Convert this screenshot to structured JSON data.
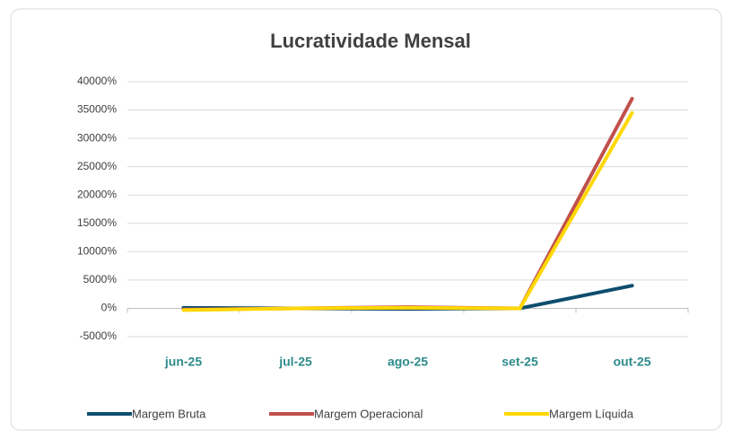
{
  "chart_data": {
    "type": "line",
    "title": "Lucratividade Mensal",
    "categories": [
      "jun-25",
      "jul-25",
      "ago-25",
      "set-25",
      "out-25"
    ],
    "series": [
      {
        "name": "Margem Bruta",
        "color": "#0e4d6e",
        "values": [
          100,
          0,
          -100,
          0,
          4000
        ]
      },
      {
        "name": "Margem Operacional",
        "color": "#c0504d",
        "values": [
          -200,
          0,
          200,
          0,
          37000
        ]
      },
      {
        "name": "Margem Líquida",
        "color": "#ffd700",
        "values": [
          -300,
          0,
          100,
          0,
          34500
        ]
      }
    ],
    "ylim": [
      -5000,
      40000
    ],
    "yticks": [
      {
        "value": -5000,
        "label": "-5000%"
      },
      {
        "value": 0,
        "label": "0%"
      },
      {
        "value": 5000,
        "label": "5000%"
      },
      {
        "value": 10000,
        "label": "10000%"
      },
      {
        "value": 15000,
        "label": "15000%"
      },
      {
        "value": 20000,
        "label": "20000%"
      },
      {
        "value": 25000,
        "label": "25000%"
      },
      {
        "value": 30000,
        "label": "30000%"
      },
      {
        "value": 35000,
        "label": "35000%"
      },
      {
        "value": 40000,
        "label": "40000%"
      }
    ],
    "grid": true,
    "legend": "bottom"
  }
}
